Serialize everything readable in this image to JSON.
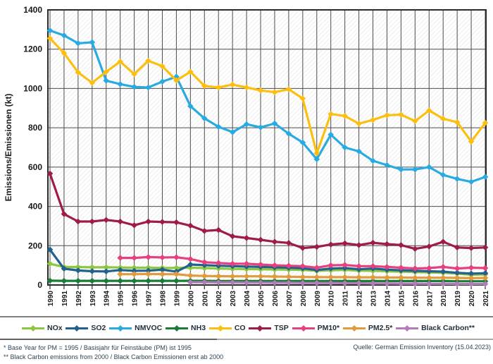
{
  "y_axis": {
    "label": "Emissions/Emissionen (kt)",
    "ticks": [
      0,
      200,
      400,
      600,
      800,
      1000,
      1200,
      1400
    ]
  },
  "footnotes": {
    "line1": "* Base Year for PM = 1995 / Basisjahr für Feinstäube (PM) ist 1995",
    "line2": "** Black Carbon emissions from 2000 / Black Carbon Emissionen erst ab 2000",
    "source": "Quelle: German Emission Inventory (15.04.2023)"
  },
  "chart_data": {
    "type": "line",
    "title": "",
    "xlabel": "",
    "ylabel": "Emissions/Emissionen (kt)",
    "ylim": [
      0,
      1400
    ],
    "ytick_step": 200,
    "grid": "both",
    "plot_background": "diagonal-hatch",
    "legend_position": "bottom",
    "x": [
      1990,
      1991,
      1992,
      1993,
      1994,
      1995,
      1996,
      1997,
      1998,
      1999,
      2000,
      2001,
      2002,
      2003,
      2004,
      2005,
      2006,
      2007,
      2008,
      2009,
      2010,
      2011,
      2012,
      2013,
      2014,
      2015,
      2016,
      2017,
      2018,
      2019,
      2020,
      2021
    ],
    "series": [
      {
        "name": "NOx",
        "legend_label": "NOx",
        "color": "#8DC63F",
        "values": [
          108,
          92,
          91,
          90,
          90,
          89,
          88,
          88,
          87,
          87,
          88,
          86,
          84,
          82,
          81,
          80,
          79,
          78,
          77,
          72,
          75,
          77,
          73,
          72,
          70,
          68,
          66,
          64,
          62,
          58,
          52,
          54
        ]
      },
      {
        "name": "SO2",
        "legend_label": "SO2",
        "color": "#21618C",
        "values": [
          180,
          83,
          74,
          70,
          69,
          76,
          72,
          73,
          78,
          68,
          104,
          101,
          98,
          96,
          94,
          92,
          90,
          88,
          85,
          76,
          84,
          86,
          80,
          84,
          78,
          75,
          72,
          70,
          68,
          62,
          58,
          60
        ]
      },
      {
        "name": "NMVOC",
        "legend_label": "NMVOC",
        "color": "#29ABE2",
        "values": [
          1295,
          1270,
          1230,
          1235,
          1040,
          1022,
          1008,
          1005,
          1035,
          1060,
          910,
          848,
          805,
          778,
          818,
          802,
          822,
          770,
          725,
          640,
          765,
          700,
          680,
          632,
          610,
          588,
          588,
          600,
          560,
          540,
          525,
          550
        ]
      },
      {
        "name": "NH3",
        "legend_label": "NH3",
        "color": "#1A7D36",
        "values": [
          22,
          21,
          21,
          21,
          21,
          21,
          21,
          21,
          21,
          21,
          21,
          21,
          20,
          20,
          20,
          20,
          20,
          20,
          20,
          20,
          20,
          20,
          20,
          20,
          20,
          20,
          20,
          20,
          20,
          19,
          19,
          19
        ]
      },
      {
        "name": "CO",
        "legend_label": "CO",
        "color": "#FCBF10",
        "values": [
          1255,
          1180,
          1082,
          1029,
          1085,
          1137,
          1073,
          1141,
          1113,
          1041,
          1085,
          1013,
          1005,
          1020,
          1005,
          990,
          981,
          996,
          949,
          670,
          870,
          860,
          821,
          840,
          864,
          867,
          834,
          888,
          846,
          828,
          730,
          825
        ]
      },
      {
        "name": "TSP",
        "legend_label": "TSP",
        "color": "#9D1C4C",
        "values": [
          567,
          361,
          323,
          323,
          331,
          323,
          304,
          323,
          321,
          319,
          302,
          275,
          280,
          248,
          239,
          230,
          220,
          214,
          188,
          194,
          206,
          212,
          203,
          215,
          208,
          203,
          184,
          196,
          220,
          191,
          188,
          191
        ]
      },
      {
        "name": "PM10",
        "legend_label": "PM10*",
        "color": "#E7407E",
        "values": [
          null,
          null,
          null,
          null,
          null,
          138,
          138,
          142,
          140,
          141,
          132,
          116,
          112,
          108,
          108,
          104,
          100,
          98,
          96,
          88,
          100,
          102,
          96,
          96,
          92,
          88,
          84,
          86,
          92,
          84,
          88,
          86
        ]
      },
      {
        "name": "PM2.5",
        "legend_label": "PM2.5*",
        "color": "#E29B3C",
        "values": [
          null,
          null,
          null,
          null,
          null,
          55,
          55,
          56,
          55,
          55,
          48,
          46,
          45,
          44,
          44,
          44,
          43,
          42,
          41,
          40,
          40,
          40,
          39,
          39,
          38,
          38,
          37,
          37,
          37,
          36,
          35,
          36
        ]
      },
      {
        "name": "Black Carbon",
        "legend_label": "Black Carbon**",
        "color": "#B17CB8",
        "values": [
          null,
          null,
          null,
          null,
          null,
          null,
          null,
          null,
          null,
          null,
          14,
          14,
          13,
          13,
          12,
          12,
          11,
          11,
          10,
          10,
          10,
          9,
          9,
          8,
          8,
          7,
          7,
          6,
          6,
          5,
          5,
          5
        ]
      }
    ]
  }
}
